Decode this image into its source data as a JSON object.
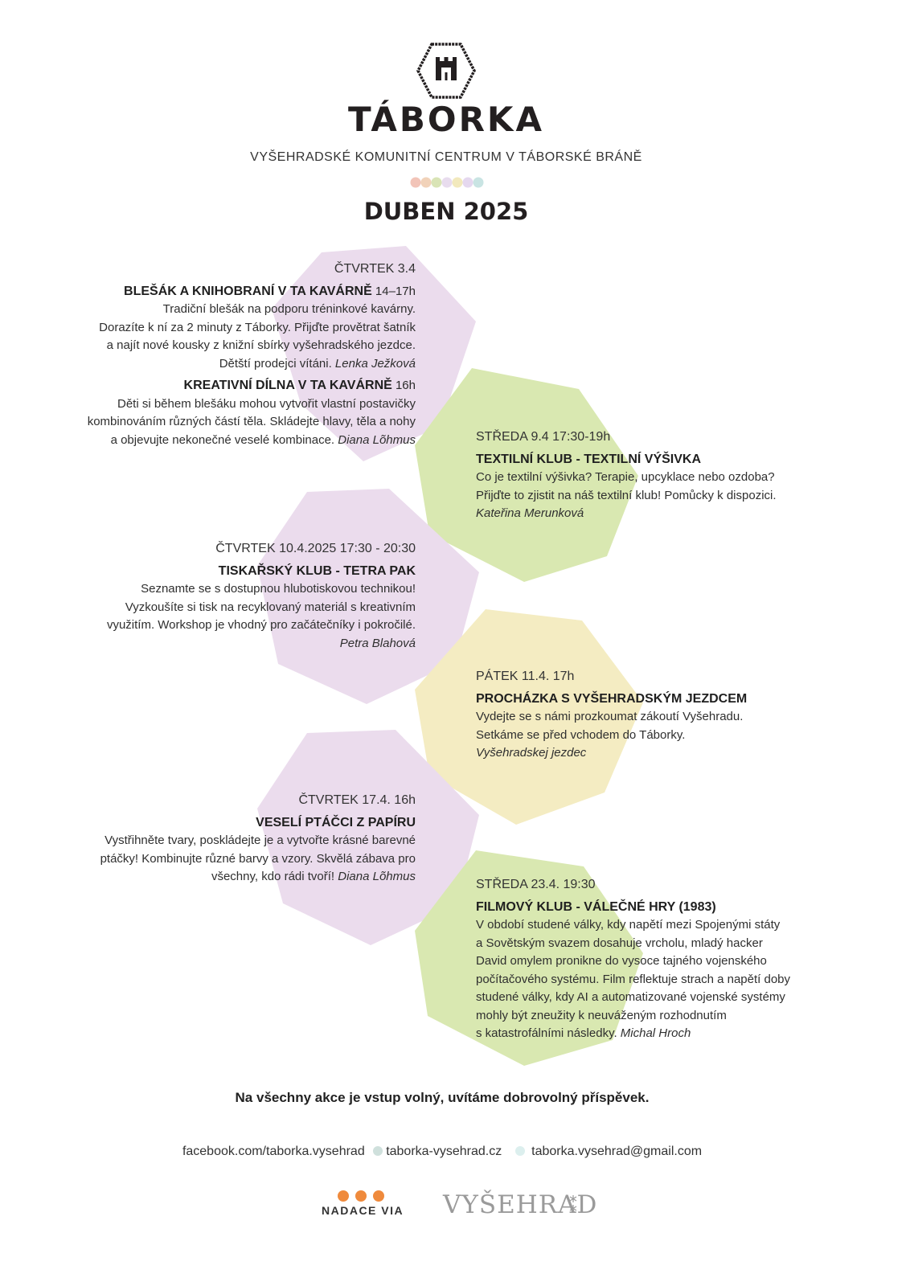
{
  "header": {
    "title": "TÁBORKA",
    "subtitle": "VYŠEHRADSKÉ KOMUNITNÍ CENTRUM V TÁBORSKÉ BRÁNĚ",
    "dot_colors": [
      "#f2c4b8",
      "#f1d2b9",
      "#d9e4b6",
      "#e8dcee",
      "#f2e9bd",
      "#e5d8ef",
      "#c9e4e3"
    ],
    "month": "DUBEN 2025"
  },
  "colors": {
    "lilac": "#ebdced",
    "green": "#d9e8b1",
    "yellow": "#f4ecc2"
  },
  "events": [
    {
      "date": "ČTVRTEK 3.4",
      "title": "BLEŠÁK A KNIHOBRANÍ V TA KAVÁRNĚ",
      "time": " 14–17h",
      "lines": [
        "Tradiční blešák na podporu tréninkové kavárny.",
        "Dorazíte k ní za 2 minuty z Táborky. Přijďte provětrat šatník",
        "a najít nové kousky z knižní sbírky vyšehradského jezdce."
      ],
      "last_line": "Dětští prodejci vítáni. ",
      "author": "Lenka Ježková"
    },
    {
      "title": "KREATIVNÍ DÍLNA V TA KAVÁRNĚ",
      "time": " 16h",
      "lines": [
        "Děti si během blešáku mohou vytvořit vlastní postavičky",
        "kombinováním různých částí těla. Skládejte hlavy, těla a nohy"
      ],
      "last_line": "a objevujte nekonečné veselé kombinace. ",
      "author": "Diana Lõhmus"
    },
    {
      "date": "STŘEDA 9.4 17:30-19h",
      "title": "TEXTILNÍ KLUB - TEXTILNÍ VÝŠIVKA",
      "lines": [
        "Co je textilní výšivka? Terapie, upcyklace nebo ozdoba?",
        "Přijďte to zjistit na náš textilní klub! Pomůcky k dispozici."
      ],
      "author": "Kateřina Merunková"
    },
    {
      "date": "ČTVRTEK 10.4.2025 17:30 - 20:30",
      "title": "TISKAŘSKÝ KLUB - TETRA PAK",
      "lines": [
        "Seznamte se s dostupnou hlubotiskovou technikou!",
        "Vyzkoušíte si tisk na recyklovaný materiál s kreativním",
        "využitím. Workshop je vhodný pro začátečníky i pokročilé."
      ],
      "author": "Petra Blahová"
    },
    {
      "date": "PÁTEK 11.4. 17h",
      "title": "PROCHÁZKA S VYŠEHRADSKÝM JEZDCEM",
      "lines": [
        "Vydejte se s námi prozkoumat zákoutí Vyšehradu.",
        "Setkáme se před vchodem do Táborky."
      ],
      "author": "Vyšehradskej jezdec"
    },
    {
      "date": "ČTVRTEK 17.4. 16h",
      "title": "VESELÍ PTÁČCI Z PAPÍRU",
      "lines": [
        "Vystřihněte tvary, poskládejte je a vytvořte krásné barevné",
        "ptáčky! Kombinujte různé barvy a vzory. Skvělá zábava pro"
      ],
      "last_line": "všechny, kdo rádi tvoří! ",
      "author": "Diana Lõhmus"
    },
    {
      "date": "STŘEDA 23.4. 19:30",
      "title": "FILMOVÝ KLUB - VÁLEČNÉ HRY (1983)",
      "lines": [
        "V období studené války, kdy napětí mezi Spojenými státy",
        "a Sovětským svazem dosahuje vrcholu, mladý hacker",
        "David omylem pronikne do vysoce tajného vojenského",
        "počítačového systému. Film reflektuje strach a napětí doby",
        "studené války, kdy AI a automatizované vojenské systémy",
        "mohly být zneužity k neuváženým rozhodnutím"
      ],
      "last_line": "s katastrofálními následky. ",
      "author": "Michal Hroch"
    }
  ],
  "footer": {
    "notice": "Na všechny akce je vstup volný, uvítáme dobrovolný příspěvek.",
    "facebook": "facebook.com/taborka.vysehrad",
    "web": "taborka-vysehrad.cz",
    "email": "taborka.vysehrad@gmail.com",
    "contact_dot_colors": [
      "#cfe0dc",
      "#dcefee"
    ],
    "sponsor_via": "NADACE VIA",
    "sponsor_via_dot_color": "#ef8a3c",
    "sponsor_vysehrad": "VYŠEHRAD"
  }
}
